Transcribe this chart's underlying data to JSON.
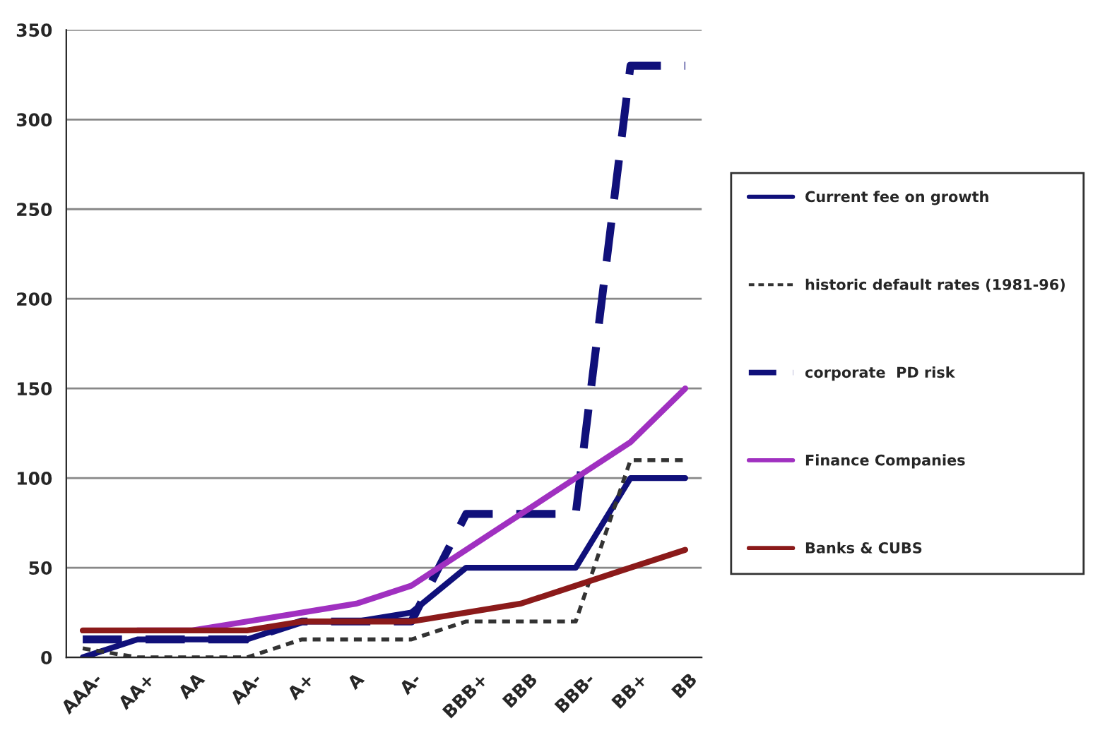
{
  "chart_data": {
    "type": "line",
    "categories": [
      "AAA-",
      "AA+",
      "AA",
      "AA-",
      "A+",
      "A",
      "A-",
      "BBB+",
      "BBB",
      "BBB-",
      "BB+",
      "BB"
    ],
    "series": [
      {
        "name": "Current fee on growth",
        "color": "#10107a",
        "line_style": "solid",
        "values": [
          0,
          10,
          10,
          10,
          20,
          20,
          25,
          50,
          50,
          50,
          100,
          100
        ]
      },
      {
        "name": "historic default rates (1981-96)",
        "color": "#333333",
        "line_style": "dotted",
        "values": [
          5,
          0,
          0,
          0,
          10,
          10,
          10,
          20,
          20,
          20,
          110,
          110
        ]
      },
      {
        "name": "corporate  PD risk",
        "color": "#10107a",
        "line_style": "dashed",
        "values": [
          10,
          10,
          10,
          10,
          20,
          20,
          20,
          80,
          80,
          80,
          330,
          330
        ]
      },
      {
        "name": "Finance Companies",
        "color": "#a030c0",
        "line_style": "solid",
        "values": [
          null,
          15,
          15,
          20,
          25,
          30,
          40,
          60,
          80,
          100,
          120,
          150
        ]
      },
      {
        "name": "Banks & CUBS",
        "color": "#8b1a1a",
        "line_style": "solid",
        "values": [
          15,
          15,
          15,
          15,
          20,
          20,
          20,
          25,
          30,
          40,
          50,
          60
        ]
      }
    ],
    "ylim": [
      0,
      350
    ],
    "yticks": [
      0,
      50,
      100,
      150,
      200,
      250,
      300,
      350
    ],
    "grid": "y",
    "legend": "right",
    "marker": "none"
  }
}
